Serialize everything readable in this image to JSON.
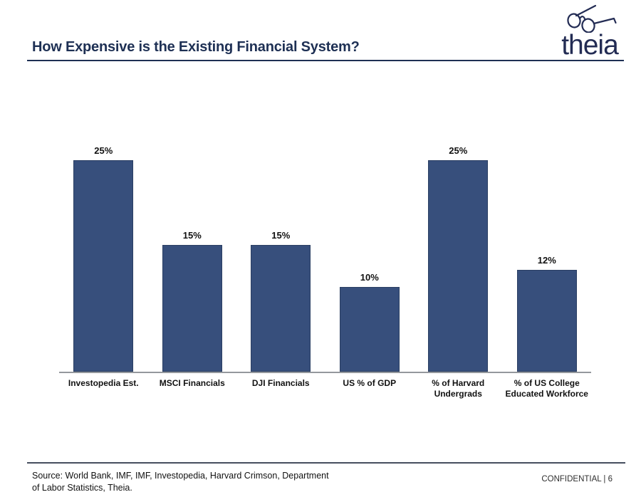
{
  "slide": {
    "title": "How Expensive is the Existing Financial System?",
    "logo": {
      "brand": "theia",
      "icon": "glasses-icon"
    },
    "footer": {
      "source_line1": "Source: World Bank, IMF, IMF, Investopedia, Harvard Crimson, Department",
      "source_line2": "of Labor Statistics, Theia.",
      "confidential": "CONFIDENTIAL | 6"
    }
  },
  "colors": {
    "title_navy": "#1E3054",
    "brand_navy": "#232C54",
    "bar_fill": "#374F7C",
    "bar_border": "#2B3F63",
    "axis_line": "#94989D",
    "footer_rule": "#464E5E"
  },
  "chart_data": {
    "type": "bar",
    "title": "How Expensive is the Existing Financial System?",
    "categories": [
      "Investopedia Est.",
      "MSCI Financials",
      "DJI Financials",
      "US % of GDP",
      "% of Harvard Undergrads",
      "% of US College Educated Workforce"
    ],
    "values": [
      25,
      15,
      15,
      10,
      25,
      12
    ],
    "data_labels": [
      "25%",
      "15%",
      "15%",
      "10%",
      "25%",
      "12%"
    ],
    "xlabel": "",
    "ylabel": "",
    "ylim": [
      0,
      28
    ],
    "unit": "%",
    "grid": false,
    "legend": false,
    "bar_color": "#374F7C",
    "bar_border_color": "#2B3F63",
    "axis_line_color": "#94989D"
  }
}
